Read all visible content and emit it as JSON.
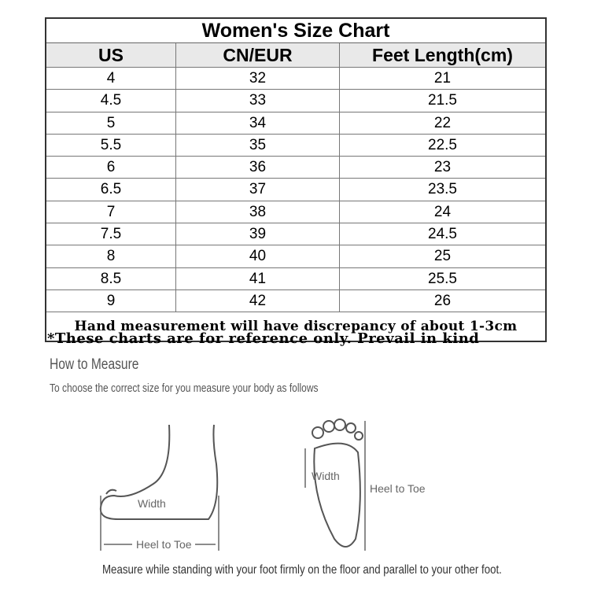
{
  "table": {
    "title": "Women's Size Chart",
    "headers": [
      "US",
      "CN/EUR",
      "Feet Length(cm)"
    ],
    "rows": [
      [
        "4",
        "32",
        "21"
      ],
      [
        "4.5",
        "33",
        "21.5"
      ],
      [
        "5",
        "34",
        "22"
      ],
      [
        "5.5",
        "35",
        "22.5"
      ],
      [
        "6",
        "36",
        "23"
      ],
      [
        "6.5",
        "37",
        "23.5"
      ],
      [
        "7",
        "38",
        "24"
      ],
      [
        "7.5",
        "39",
        "24.5"
      ],
      [
        "8",
        "40",
        "25"
      ],
      [
        "8.5",
        "41",
        "25.5"
      ],
      [
        "9",
        "42",
        "26"
      ]
    ],
    "note": "Hand measurement will have discrepancy of about 1-3cm"
  },
  "reference_note": "*These charts are for reference only. Prevail in kind",
  "how_to": {
    "title": "How to Measure",
    "subtitle": "To choose the correct size for you measure your body as follows",
    "side_width_label": "Width",
    "side_length_label": "Heel to Toe",
    "sole_width_label": "Width",
    "sole_length_label": "Heel to Toe",
    "caption": "Measure while standing with your foot firmly on the floor and parallel to your other foot."
  }
}
